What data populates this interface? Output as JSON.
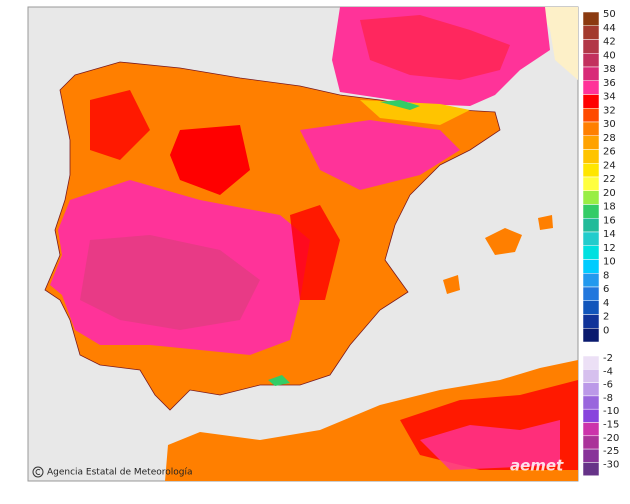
{
  "legend": {
    "warm": [
      {
        "value": 50,
        "color": "#8b3a10"
      },
      {
        "value": 44,
        "color": "#a33a2e"
      },
      {
        "value": 42,
        "color": "#b23848"
      },
      {
        "value": 40,
        "color": "#c2305e"
      },
      {
        "value": 38,
        "color": "#d82a78"
      },
      {
        "value": 36,
        "color": "#ff3399"
      },
      {
        "value": 34,
        "color": "#ff0000"
      },
      {
        "value": 32,
        "color": "#ff4a00"
      },
      {
        "value": 30,
        "color": "#ff7f00"
      },
      {
        "value": 28,
        "color": "#ffa200"
      },
      {
        "value": 26,
        "color": "#ffc400"
      },
      {
        "value": 24,
        "color": "#ffe600"
      },
      {
        "value": 22,
        "color": "#ffff40"
      },
      {
        "value": 20,
        "color": "#99ee44"
      },
      {
        "value": 18,
        "color": "#33cc66"
      },
      {
        "value": 16,
        "color": "#22bb99"
      },
      {
        "value": 14,
        "color": "#22cccc"
      },
      {
        "value": 12,
        "color": "#00e0e0"
      },
      {
        "value": 10,
        "color": "#00ccff"
      },
      {
        "value": 8,
        "color": "#2299ee"
      },
      {
        "value": 6,
        "color": "#2277dd"
      },
      {
        "value": 4,
        "color": "#1155bb"
      },
      {
        "value": 2,
        "color": "#113399"
      },
      {
        "value": 0,
        "color": "#0a1a6e"
      }
    ],
    "cold": [
      {
        "value": -2,
        "color": "#ece0f6"
      },
      {
        "value": -4,
        "color": "#d6c0ee"
      },
      {
        "value": -6,
        "color": "#bb99e8"
      },
      {
        "value": -8,
        "color": "#9966dd"
      },
      {
        "value": -10,
        "color": "#8844dd"
      },
      {
        "value": -15,
        "color": "#cc33aa"
      },
      {
        "value": -20,
        "color": "#aa3399"
      },
      {
        "value": -25,
        "color": "#883399"
      },
      {
        "value": -30,
        "color": "#663388"
      }
    ]
  },
  "credit": "Agencia Estatal de Meteorología",
  "logo": "aemet"
}
